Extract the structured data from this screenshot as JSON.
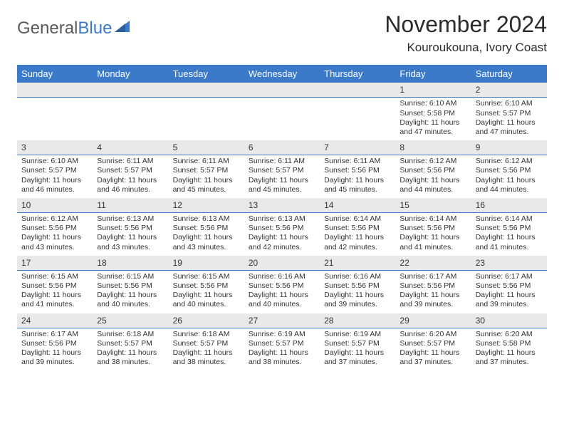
{
  "logo": {
    "text1": "General",
    "text2": "Blue"
  },
  "title": "November 2024",
  "location": "Kouroukouna, Ivory Coast",
  "colors": {
    "header_bg": "#3a7ac8",
    "daynum_bg": "#e9e9e9",
    "text": "#333333",
    "page_bg": "#ffffff"
  },
  "weekdays": [
    "Sunday",
    "Monday",
    "Tuesday",
    "Wednesday",
    "Thursday",
    "Friday",
    "Saturday"
  ],
  "weeks": [
    [
      null,
      null,
      null,
      null,
      null,
      {
        "n": "1",
        "sr": "Sunrise: 6:10 AM",
        "ss": "Sunset: 5:58 PM",
        "dl1": "Daylight: 11 hours",
        "dl2": "and 47 minutes."
      },
      {
        "n": "2",
        "sr": "Sunrise: 6:10 AM",
        "ss": "Sunset: 5:57 PM",
        "dl1": "Daylight: 11 hours",
        "dl2": "and 47 minutes."
      }
    ],
    [
      {
        "n": "3",
        "sr": "Sunrise: 6:10 AM",
        "ss": "Sunset: 5:57 PM",
        "dl1": "Daylight: 11 hours",
        "dl2": "and 46 minutes."
      },
      {
        "n": "4",
        "sr": "Sunrise: 6:11 AM",
        "ss": "Sunset: 5:57 PM",
        "dl1": "Daylight: 11 hours",
        "dl2": "and 46 minutes."
      },
      {
        "n": "5",
        "sr": "Sunrise: 6:11 AM",
        "ss": "Sunset: 5:57 PM",
        "dl1": "Daylight: 11 hours",
        "dl2": "and 45 minutes."
      },
      {
        "n": "6",
        "sr": "Sunrise: 6:11 AM",
        "ss": "Sunset: 5:57 PM",
        "dl1": "Daylight: 11 hours",
        "dl2": "and 45 minutes."
      },
      {
        "n": "7",
        "sr": "Sunrise: 6:11 AM",
        "ss": "Sunset: 5:56 PM",
        "dl1": "Daylight: 11 hours",
        "dl2": "and 45 minutes."
      },
      {
        "n": "8",
        "sr": "Sunrise: 6:12 AM",
        "ss": "Sunset: 5:56 PM",
        "dl1": "Daylight: 11 hours",
        "dl2": "and 44 minutes."
      },
      {
        "n": "9",
        "sr": "Sunrise: 6:12 AM",
        "ss": "Sunset: 5:56 PM",
        "dl1": "Daylight: 11 hours",
        "dl2": "and 44 minutes."
      }
    ],
    [
      {
        "n": "10",
        "sr": "Sunrise: 6:12 AM",
        "ss": "Sunset: 5:56 PM",
        "dl1": "Daylight: 11 hours",
        "dl2": "and 43 minutes."
      },
      {
        "n": "11",
        "sr": "Sunrise: 6:13 AM",
        "ss": "Sunset: 5:56 PM",
        "dl1": "Daylight: 11 hours",
        "dl2": "and 43 minutes."
      },
      {
        "n": "12",
        "sr": "Sunrise: 6:13 AM",
        "ss": "Sunset: 5:56 PM",
        "dl1": "Daylight: 11 hours",
        "dl2": "and 43 minutes."
      },
      {
        "n": "13",
        "sr": "Sunrise: 6:13 AM",
        "ss": "Sunset: 5:56 PM",
        "dl1": "Daylight: 11 hours",
        "dl2": "and 42 minutes."
      },
      {
        "n": "14",
        "sr": "Sunrise: 6:14 AM",
        "ss": "Sunset: 5:56 PM",
        "dl1": "Daylight: 11 hours",
        "dl2": "and 42 minutes."
      },
      {
        "n": "15",
        "sr": "Sunrise: 6:14 AM",
        "ss": "Sunset: 5:56 PM",
        "dl1": "Daylight: 11 hours",
        "dl2": "and 41 minutes."
      },
      {
        "n": "16",
        "sr": "Sunrise: 6:14 AM",
        "ss": "Sunset: 5:56 PM",
        "dl1": "Daylight: 11 hours",
        "dl2": "and 41 minutes."
      }
    ],
    [
      {
        "n": "17",
        "sr": "Sunrise: 6:15 AM",
        "ss": "Sunset: 5:56 PM",
        "dl1": "Daylight: 11 hours",
        "dl2": "and 41 minutes."
      },
      {
        "n": "18",
        "sr": "Sunrise: 6:15 AM",
        "ss": "Sunset: 5:56 PM",
        "dl1": "Daylight: 11 hours",
        "dl2": "and 40 minutes."
      },
      {
        "n": "19",
        "sr": "Sunrise: 6:15 AM",
        "ss": "Sunset: 5:56 PM",
        "dl1": "Daylight: 11 hours",
        "dl2": "and 40 minutes."
      },
      {
        "n": "20",
        "sr": "Sunrise: 6:16 AM",
        "ss": "Sunset: 5:56 PM",
        "dl1": "Daylight: 11 hours",
        "dl2": "and 40 minutes."
      },
      {
        "n": "21",
        "sr": "Sunrise: 6:16 AM",
        "ss": "Sunset: 5:56 PM",
        "dl1": "Daylight: 11 hours",
        "dl2": "and 39 minutes."
      },
      {
        "n": "22",
        "sr": "Sunrise: 6:17 AM",
        "ss": "Sunset: 5:56 PM",
        "dl1": "Daylight: 11 hours",
        "dl2": "and 39 minutes."
      },
      {
        "n": "23",
        "sr": "Sunrise: 6:17 AM",
        "ss": "Sunset: 5:56 PM",
        "dl1": "Daylight: 11 hours",
        "dl2": "and 39 minutes."
      }
    ],
    [
      {
        "n": "24",
        "sr": "Sunrise: 6:17 AM",
        "ss": "Sunset: 5:56 PM",
        "dl1": "Daylight: 11 hours",
        "dl2": "and 39 minutes."
      },
      {
        "n": "25",
        "sr": "Sunrise: 6:18 AM",
        "ss": "Sunset: 5:57 PM",
        "dl1": "Daylight: 11 hours",
        "dl2": "and 38 minutes."
      },
      {
        "n": "26",
        "sr": "Sunrise: 6:18 AM",
        "ss": "Sunset: 5:57 PM",
        "dl1": "Daylight: 11 hours",
        "dl2": "and 38 minutes."
      },
      {
        "n": "27",
        "sr": "Sunrise: 6:19 AM",
        "ss": "Sunset: 5:57 PM",
        "dl1": "Daylight: 11 hours",
        "dl2": "and 38 minutes."
      },
      {
        "n": "28",
        "sr": "Sunrise: 6:19 AM",
        "ss": "Sunset: 5:57 PM",
        "dl1": "Daylight: 11 hours",
        "dl2": "and 37 minutes."
      },
      {
        "n": "29",
        "sr": "Sunrise: 6:20 AM",
        "ss": "Sunset: 5:57 PM",
        "dl1": "Daylight: 11 hours",
        "dl2": "and 37 minutes."
      },
      {
        "n": "30",
        "sr": "Sunrise: 6:20 AM",
        "ss": "Sunset: 5:58 PM",
        "dl1": "Daylight: 11 hours",
        "dl2": "and 37 minutes."
      }
    ]
  ]
}
